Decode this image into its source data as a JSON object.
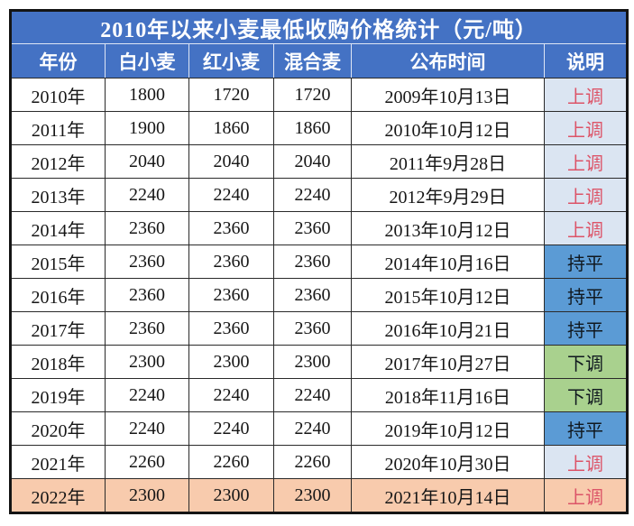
{
  "title": "2010年以来小麦最低收购价格统计（元/吨）",
  "colors": {
    "header_bg": "#4472c4",
    "outer_border": "#141414",
    "grid_border": "#2a2a2a",
    "status_up_bg": "#dbe5f2",
    "status_up_text": "#dc5468",
    "status_flat_bg": "#5b9bd5",
    "status_down_bg": "#a9d18e",
    "highlight_row_bg": "#f8cbad"
  },
  "chart_data": {
    "type": "table",
    "title": "2010年以来小麦最低收购价格统计（元/吨）",
    "unit": "元/吨",
    "columns": [
      "年份",
      "白小麦",
      "红小麦",
      "混合麦",
      "公布时间",
      "说明"
    ],
    "rows": [
      [
        "2010年",
        1800,
        1720,
        1720,
        "2009年10月13日",
        "上调"
      ],
      [
        "2011年",
        1900,
        1860,
        1860,
        "2010年10月12日",
        "上调"
      ],
      [
        "2012年",
        2040,
        2040,
        2040,
        "2011年9月28日",
        "上调"
      ],
      [
        "2013年",
        2240,
        2240,
        2240,
        "2012年9月29日",
        "上调"
      ],
      [
        "2014年",
        2360,
        2360,
        2360,
        "2013年10月12日",
        "上调"
      ],
      [
        "2015年",
        2360,
        2360,
        2360,
        "2014年10月16日",
        "持平"
      ],
      [
        "2016年",
        2360,
        2360,
        2360,
        "2015年10月12日",
        "持平"
      ],
      [
        "2017年",
        2360,
        2360,
        2360,
        "2016年10月21日",
        "持平"
      ],
      [
        "2018年",
        2300,
        2300,
        2300,
        "2017年10月27日",
        "下调"
      ],
      [
        "2019年",
        2240,
        2240,
        2240,
        "2018年11月16日",
        "下调"
      ],
      [
        "2020年",
        2240,
        2240,
        2240,
        "2019年10月12日",
        "持平"
      ],
      [
        "2021年",
        2260,
        2260,
        2260,
        "2020年10月30日",
        "上调"
      ],
      [
        "2022年",
        2300,
        2300,
        2300,
        "2021年10月14日",
        "上调"
      ]
    ],
    "row_status": [
      "up",
      "up",
      "up",
      "up",
      "up",
      "flat",
      "flat",
      "flat",
      "down",
      "down",
      "flat",
      "up",
      "up"
    ],
    "highlighted_rows": [
      12
    ],
    "status_legend": {
      "up": "上调",
      "flat": "持平",
      "down": "下调"
    }
  }
}
